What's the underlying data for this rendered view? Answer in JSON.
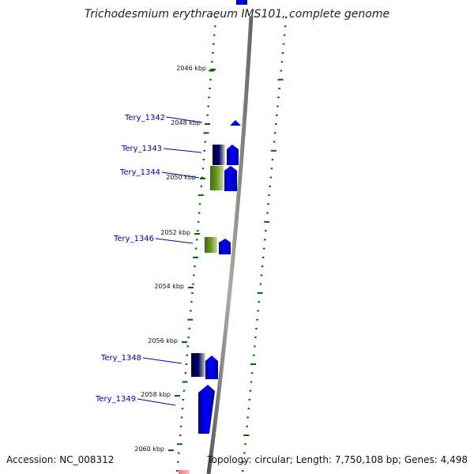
{
  "title": "Trichodesmium erythraeum IMS101, complete genome",
  "footer": {
    "accession": "Accession: NC_008312",
    "topology": "Topology: circular; Length: 7,750,108 bp; Genes: 4,498"
  },
  "ticks": [
    {
      "label": "2046 kbp"
    },
    {
      "label": "2048 kbp"
    },
    {
      "label": "2050 kbp"
    },
    {
      "label": "2052 kbp"
    },
    {
      "label": "2054 kbp"
    },
    {
      "label": "2056 kbp"
    },
    {
      "label": "2058 kbp"
    },
    {
      "label": "2060 kbp"
    }
  ],
  "genes": [
    {
      "label": "Tery_1342"
    },
    {
      "label": "Tery_1343"
    },
    {
      "label": "Tery_1344"
    },
    {
      "label": "Tery_1346"
    },
    {
      "label": "Tery_1348"
    },
    {
      "label": "Tery_1349"
    }
  ],
  "colors": {
    "forward_gene": "#0000ee",
    "reverse_dark": "#000050",
    "reverse_green": "#5a8a1a",
    "backbone": "#888888",
    "gc_dots": "#006600",
    "label": "#0000b0"
  }
}
